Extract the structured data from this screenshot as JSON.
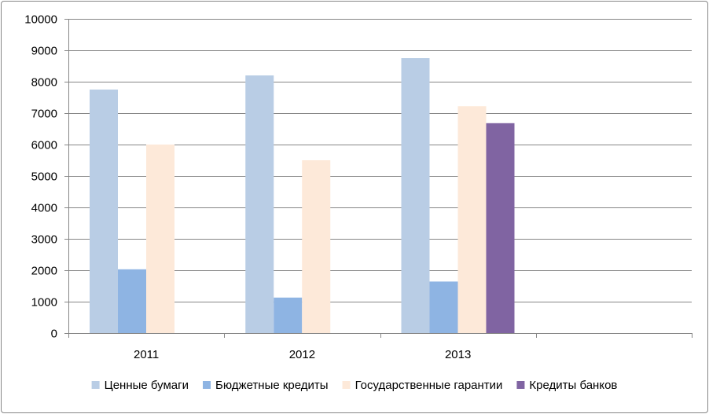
{
  "chart_data": {
    "type": "bar",
    "categories": [
      "2011",
      "2012",
      "2013",
      ""
    ],
    "series": [
      {
        "name": "Ценные бумаги",
        "color": "#b9cde5",
        "values": [
          7750,
          8200,
          8750,
          null
        ]
      },
      {
        "name": "Бюджетные кредиты",
        "color": "#8eb4e3",
        "values": [
          2030,
          1130,
          1640,
          null
        ]
      },
      {
        "name": "Государственные гарантии",
        "color": "#fde9d9",
        "values": [
          6000,
          5500,
          7220,
          null
        ]
      },
      {
        "name": "Кредиты банков",
        "color": "#8064a2",
        "values": [
          null,
          null,
          6680,
          null
        ]
      }
    ],
    "yticks": [
      "0",
      "1000",
      "2000",
      "3000",
      "4000",
      "5000",
      "6000",
      "7000",
      "8000",
      "9000",
      "10000"
    ],
    "ylim": [
      0,
      10000
    ],
    "grid": true,
    "legend_position": "bottom",
    "title": "",
    "xlabel": "",
    "ylabel": ""
  }
}
